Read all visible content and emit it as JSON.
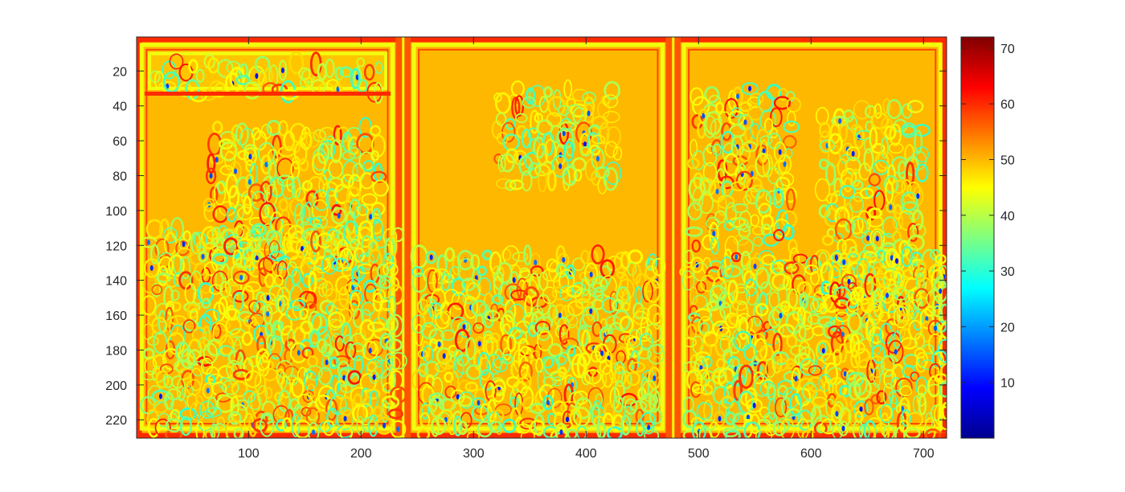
{
  "chart_data": {
    "type": "heatmap",
    "title": "",
    "xlabel": "",
    "ylabel": "",
    "xlim": [
      0.5,
      720.5
    ],
    "ylim": [
      0.5,
      230.5
    ],
    "y_reversed": true,
    "x_ticks": [
      100,
      200,
      300,
      400,
      500,
      600,
      700
    ],
    "y_ticks": [
      20,
      40,
      60,
      80,
      100,
      120,
      140,
      160,
      180,
      200,
      220
    ],
    "colorbar": {
      "colormap": "jet",
      "range": [
        0,
        72
      ],
      "ticks": [
        10,
        20,
        30,
        40,
        50,
        60,
        70
      ]
    },
    "grid": false,
    "background_value": 50,
    "panels": [
      {
        "x": [
          5,
          228
        ],
        "y": [
          5,
          225
        ]
      },
      {
        "x": [
          247,
          468
        ],
        "y": [
          5,
          225
        ]
      },
      {
        "x": [
          487,
          715
        ],
        "y": [
          5,
          225
        ]
      }
    ],
    "banner": {
      "x": [
        12,
        222
      ],
      "y": [
        10,
        30
      ]
    },
    "text_blocks": [
      {
        "x": [
          65,
          215
        ],
        "y": [
          52,
          125
        ]
      },
      {
        "x": [
          320,
          420
        ],
        "y": [
          30,
          85
        ]
      },
      {
        "x": [
          495,
          582
        ],
        "y": [
          30,
          115
        ]
      },
      {
        "x": [
          610,
          700
        ],
        "y": [
          40,
          155
        ]
      }
    ],
    "figure_regions": [
      {
        "x": [
          10,
          228
        ],
        "y": [
          110,
          225
        ]
      },
      {
        "x": [
          250,
          465
        ],
        "y": [
          125,
          225
        ]
      },
      {
        "x": [
          490,
          715
        ],
        "y": [
          125,
          225
        ]
      }
    ],
    "colors": {
      "axes": "#262626",
      "background": "#ffffff"
    }
  }
}
